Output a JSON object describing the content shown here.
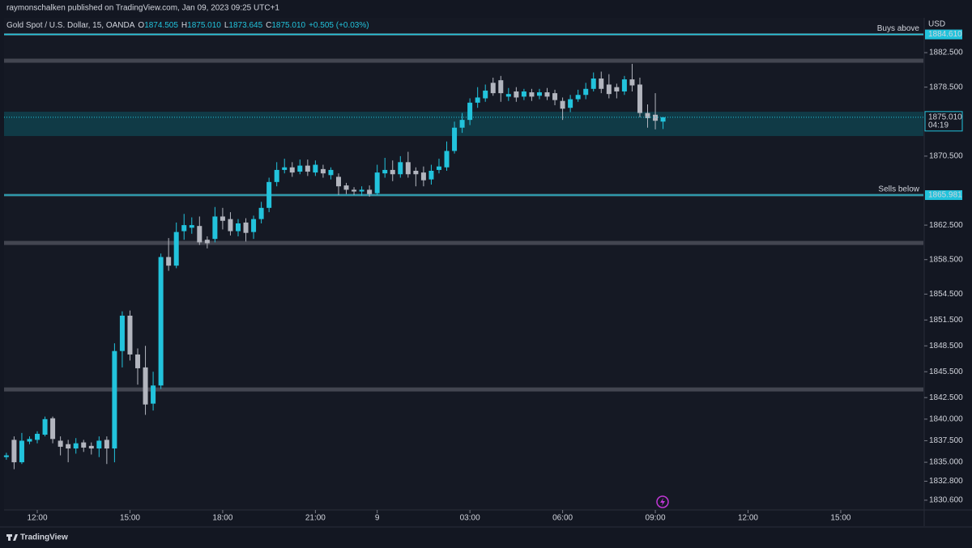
{
  "page": {
    "published": "raymonschalken published on TradingView.com, Jan 09, 2023 09:25 UTC+1",
    "brand": "TradingView"
  },
  "chart_data": {
    "type": "candlestick",
    "symbol": "Gold Spot / U.S. Dollar, 15, OANDA",
    "ohlc_header": [
      {
        "key": "O",
        "value": "1874.505"
      },
      {
        "key": "H",
        "value": "1875.010"
      },
      {
        "key": "L",
        "value": "1873.645"
      },
      {
        "key": "C",
        "value": "1875.010"
      }
    ],
    "change": "+0.505 (+0.03%)",
    "currency": "USD",
    "up_color": "#22c3dc",
    "down_color": "#b2b5be",
    "open": [
      1835.6,
      1837.6,
      1835.0,
      1837.4,
      1837.6,
      1838.2,
      1840.1,
      1837.5,
      1837.1,
      1836.6,
      1837.3,
      1836.9,
      1836.6,
      1837.6,
      1836.6,
      1847.9,
      1852.0,
      1847.5,
      1846.0,
      1841.8,
      1843.9,
      1858.8,
      1857.8,
      1861.8,
      1862.2,
      1862.4,
      1860.8,
      1860.9,
      1863.5,
      1863.2,
      1861.8,
      1862.8,
      1861.7,
      1863.2,
      1864.5,
      1867.5,
      1868.9,
      1869.2,
      1868.7,
      1869.4,
      1868.6,
      1869.0,
      1868.3,
      1868.1,
      1867.1,
      1866.6,
      1866.4,
      1866.6,
      1866.2,
      1868.5,
      1868.9,
      1868.4,
      1869.8,
      1868.8,
      1868.6,
      1867.8,
      1868.9,
      1869.2,
      1871.1,
      1873.8,
      1874.7,
      1876.7,
      1877.2,
      1879.0,
      1879.3,
      1877.4,
      1878.0,
      1877.4,
      1877.9,
      1877.5,
      1877.9,
      1877.8,
      1876.9,
      1876.1,
      1877.1,
      1877.6,
      1878.3,
      1879.5,
      1878.8,
      1878.5,
      1878.0,
      1879.4,
      1878.8,
      1875.5,
      1875.3,
      1874.505
    ],
    "high": [
      1836.1,
      1838.0,
      1838.4,
      1838.0,
      1838.6,
      1840.3,
      1840.3,
      1838.0,
      1837.6,
      1837.8,
      1837.6,
      1837.3,
      1838.0,
      1838.0,
      1848.8,
      1852.5,
      1852.6,
      1848.2,
      1848.5,
      1845.5,
      1859.2,
      1861.0,
      1862.8,
      1863.8,
      1863.4,
      1863.5,
      1861.2,
      1864.6,
      1864.5,
      1864.0,
      1863.2,
      1863.3,
      1863.6,
      1865.2,
      1868.0,
      1869.8,
      1870.2,
      1869.8,
      1870.1,
      1870.1,
      1870.0,
      1869.5,
      1869.2,
      1868.5,
      1867.4,
      1866.9,
      1867.0,
      1867.1,
      1869.5,
      1870.3,
      1870.0,
      1870.5,
      1871.0,
      1869.2,
      1869.3,
      1869.5,
      1870.2,
      1872.2,
      1874.5,
      1875.5,
      1877.2,
      1878.5,
      1878.8,
      1879.6,
      1879.8,
      1878.4,
      1878.5,
      1878.3,
      1878.3,
      1878.3,
      1878.4,
      1878.2,
      1877.3,
      1877.6,
      1878.2,
      1879.0,
      1880.2,
      1880.3,
      1880.0,
      1878.9,
      1879.8,
      1881.2,
      1879.6,
      1876.5,
      1877.8,
      1875.01
    ],
    "low": [
      1835.3,
      1834.2,
      1834.8,
      1837.1,
      1837.2,
      1838.0,
      1837.2,
      1835.8,
      1835.0,
      1836.0,
      1836.2,
      1835.9,
      1835.6,
      1834.8,
      1835.0,
      1846.0,
      1846.8,
      1844.0,
      1840.5,
      1841.0,
      1843.5,
      1857.2,
      1857.5,
      1860.8,
      1861.5,
      1860.2,
      1859.8,
      1860.5,
      1862.0,
      1861.3,
      1861.2,
      1860.6,
      1860.9,
      1862.7,
      1864.0,
      1867.0,
      1868.5,
      1868.1,
      1868.4,
      1868.2,
      1868.2,
      1868.0,
      1867.8,
      1866.0,
      1866.1,
      1866.0,
      1865.9,
      1865.8,
      1866.0,
      1868.0,
      1867.6,
      1868.0,
      1868.0,
      1867.0,
      1867.0,
      1867.2,
      1868.5,
      1868.8,
      1870.8,
      1873.2,
      1874.1,
      1876.1,
      1876.8,
      1877.5,
      1876.8,
      1876.9,
      1876.8,
      1877.0,
      1876.9,
      1877.1,
      1877.0,
      1876.4,
      1874.7,
      1875.6,
      1876.8,
      1877.1,
      1878.0,
      1877.8,
      1877.2,
      1877.2,
      1877.6,
      1878.0,
      1875.0,
      1873.8,
      1873.6,
      1873.645
    ],
    "close": [
      1835.8,
      1835.0,
      1837.5,
      1837.7,
      1838.3,
      1840.0,
      1837.7,
      1836.8,
      1836.6,
      1837.2,
      1836.7,
      1836.6,
      1837.5,
      1836.6,
      1847.9,
      1852.0,
      1847.5,
      1845.9,
      1841.7,
      1843.9,
      1858.8,
      1857.8,
      1861.7,
      1862.5,
      1862.5,
      1860.5,
      1860.4,
      1863.5,
      1863.0,
      1861.8,
      1862.7,
      1861.6,
      1863.2,
      1864.5,
      1867.5,
      1868.9,
      1869.2,
      1868.6,
      1869.4,
      1868.7,
      1869.5,
      1868.5,
      1868.9,
      1867.0,
      1866.6,
      1866.4,
      1866.6,
      1866.1,
      1868.6,
      1868.9,
      1868.4,
      1869.8,
      1868.4,
      1868.4,
      1867.7,
      1868.8,
      1869.3,
      1871.1,
      1873.8,
      1874.7,
      1876.7,
      1877.3,
      1878.1,
      1877.8,
      1877.8,
      1877.7,
      1877.3,
      1878.0,
      1877.4,
      1877.9,
      1877.4,
      1877.0,
      1876.0,
      1877.1,
      1877.6,
      1878.3,
      1879.5,
      1878.3,
      1877.7,
      1878.0,
      1879.4,
      1878.7,
      1875.5,
      1874.9,
      1874.6,
      1875.01
    ],
    "xlim": [
      -0.3,
      118.7
    ],
    "xticks": [
      {
        "value": 4,
        "label": "12:00"
      },
      {
        "value": 16,
        "label": "15:00"
      },
      {
        "value": 28,
        "label": "18:00"
      },
      {
        "value": 40,
        "label": "21:00"
      },
      {
        "value": 48,
        "label": "9"
      },
      {
        "value": 60,
        "label": "03:00"
      },
      {
        "value": 72,
        "label": "06:00"
      },
      {
        "value": 84,
        "label": "09:00"
      },
      {
        "value": 96,
        "label": "12:00"
      },
      {
        "value": 108,
        "label": "15:00"
      }
    ],
    "ylim": [
      1829.47,
      1886.54
    ],
    "yticks": [
      {
        "value": 1882.5,
        "label": "1882.500"
      },
      {
        "value": 1878.5,
        "label": "1878.500"
      },
      {
        "value": 1870.5,
        "label": "1870.500"
      },
      {
        "value": 1862.5,
        "label": "1862.500"
      },
      {
        "value": 1858.5,
        "label": "1858.500"
      },
      {
        "value": 1854.5,
        "label": "1854.500"
      },
      {
        "value": 1851.5,
        "label": "1851.500"
      },
      {
        "value": 1848.5,
        "label": "1848.500"
      },
      {
        "value": 1845.5,
        "label": "1845.500"
      },
      {
        "value": 1842.5,
        "label": "1842.500"
      },
      {
        "value": 1840,
        "label": "1840.000"
      },
      {
        "value": 1837.5,
        "label": "1837.500"
      },
      {
        "value": 1835,
        "label": "1835.000"
      },
      {
        "value": 1832.8,
        "label": "1832.800"
      },
      {
        "value": 1830.6,
        "label": "1830.600"
      }
    ],
    "zone": [
      1872.83,
      1875.65
    ],
    "gray_levels": [
      1881.56,
      1860.43,
      1843.44
    ],
    "levels": [
      {
        "name": "Buys above",
        "value": 1884.61,
        "label": "1884.610"
      },
      {
        "name": "Sells below",
        "value": 1865.981,
        "label": "1865.981"
      }
    ],
    "last_price": {
      "value": 1875.01,
      "label": "1875.010",
      "countdown": "04:19"
    }
  }
}
